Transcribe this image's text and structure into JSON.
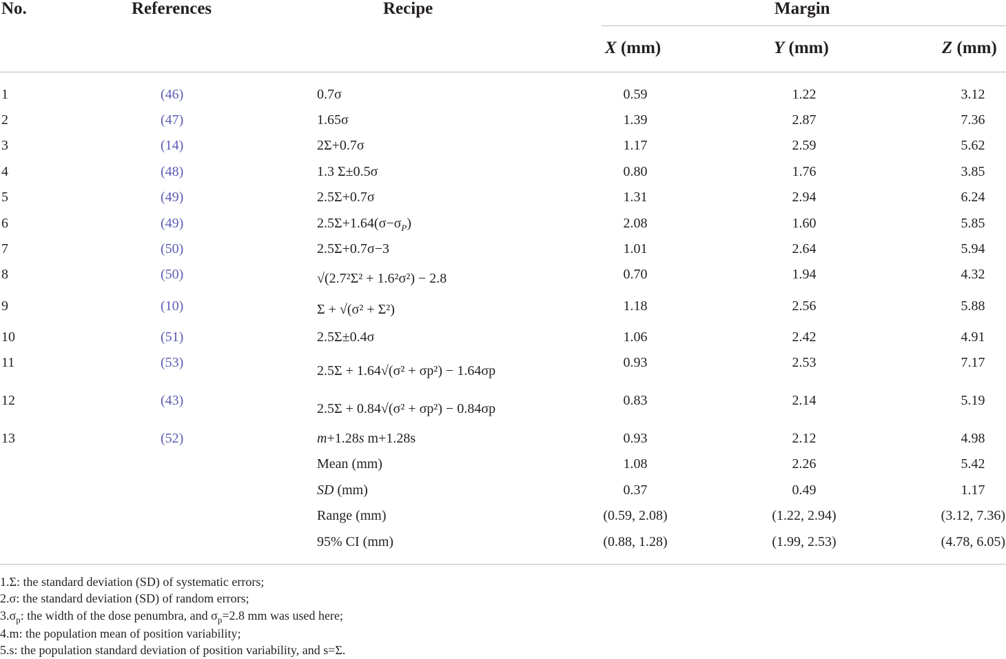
{
  "headers": {
    "no": "No.",
    "references": "References",
    "recipe": "Recipe",
    "margin": "Margin",
    "x_var": "X",
    "y_var": "Y",
    "z_var": "Z",
    "unit": "(mm)"
  },
  "rows": [
    {
      "no": "1",
      "ref": "(46)",
      "recipe": "0.7σ",
      "x": "0.59",
      "y": "1.22",
      "z": "3.12"
    },
    {
      "no": "2",
      "ref": "(47)",
      "recipe": "1.65σ",
      "x": "1.39",
      "y": "2.87",
      "z": "7.36"
    },
    {
      "no": "3",
      "ref": "(14)",
      "recipe": "2Σ+0.7σ",
      "x": "1.17",
      "y": "2.59",
      "z": "5.62"
    },
    {
      "no": "4",
      "ref": "(48)",
      "recipe": "1.3 Σ±0.5σ",
      "x": "0.80",
      "y": "1.76",
      "z": "3.85"
    },
    {
      "no": "5",
      "ref": "(49)",
      "recipe": "2.5Σ+0.7σ",
      "x": "1.31",
      "y": "2.94",
      "z": "6.24"
    },
    {
      "no": "6",
      "ref": "(49)",
      "recipe": "2.5Σ+1.64(σ−σ",
      "recipe_sub": "P",
      "recipe_tail": ")",
      "x": "2.08",
      "y": "1.60",
      "z": "5.85"
    },
    {
      "no": "7",
      "ref": "(50)",
      "recipe": "2.5Σ+0.7σ−3",
      "x": "1.01",
      "y": "2.64",
      "z": "5.94"
    },
    {
      "no": "8",
      "ref": "(50)",
      "recipe": "√(2.7²Σ² + 1.6²σ²) − 2.8",
      "x": "0.70",
      "y": "1.94",
      "z": "4.32"
    },
    {
      "no": "9",
      "ref": "(10)",
      "recipe": "Σ + √(σ² + Σ²)",
      "x": "1.18",
      "y": "2.56",
      "z": "5.88"
    },
    {
      "no": "10",
      "ref": "(51)",
      "recipe": "2.5Σ±0.4σ",
      "x": "1.06",
      "y": "2.42",
      "z": "4.91"
    },
    {
      "no": "11",
      "ref": "(53)",
      "recipe": "2.5Σ + 1.64√(σ² + σp²) − 1.64σp",
      "x": "0.93",
      "y": "2.53",
      "z": "7.17"
    },
    {
      "no": "12",
      "ref": "(43)",
      "recipe": "2.5Σ + 0.84√(σ² + σp²) − 0.84σp",
      "x": "0.83",
      "y": "2.14",
      "z": "5.19"
    },
    {
      "no": "13",
      "ref": "(52)",
      "recipe_italic": "m",
      "recipe": "+1.28",
      "recipe_italic2": "s",
      "recipe_tail": " m+1.28s",
      "x": "0.93",
      "y": "2.12",
      "z": "4.98"
    }
  ],
  "summary": [
    {
      "label": "Mean (mm)",
      "x": "1.08",
      "y": "2.26",
      "z": "5.42"
    },
    {
      "label_italic": "SD",
      "label": " (mm)",
      "x": "0.37",
      "y": "0.49",
      "z": "1.17"
    },
    {
      "label": "Range (mm)",
      "x": "(0.59, 2.08)",
      "y": "(1.22, 2.94)",
      "z": "(3.12, 7.36)"
    },
    {
      "label": "95% CI (mm)",
      "x": "(0.88, 1.28)",
      "y": "(1.99, 2.53)",
      "z": "(4.78, 6.05)"
    }
  ],
  "footnotes": {
    "n1": "1.Σ: the standard deviation (SD) of systematic errors;",
    "n2": "2.σ: the standard deviation (SD) of random errors;",
    "n3_a": "3.σ",
    "n3_sub1": "p",
    "n3_b": ": the width of the dose penumbra, and σ",
    "n3_sub2": "p",
    "n3_c": "=2.8 mm was used here;",
    "n4": "4.m: the population mean of position variability;",
    "n5": "5.s: the population standard deviation of position variability, and s=Σ."
  }
}
